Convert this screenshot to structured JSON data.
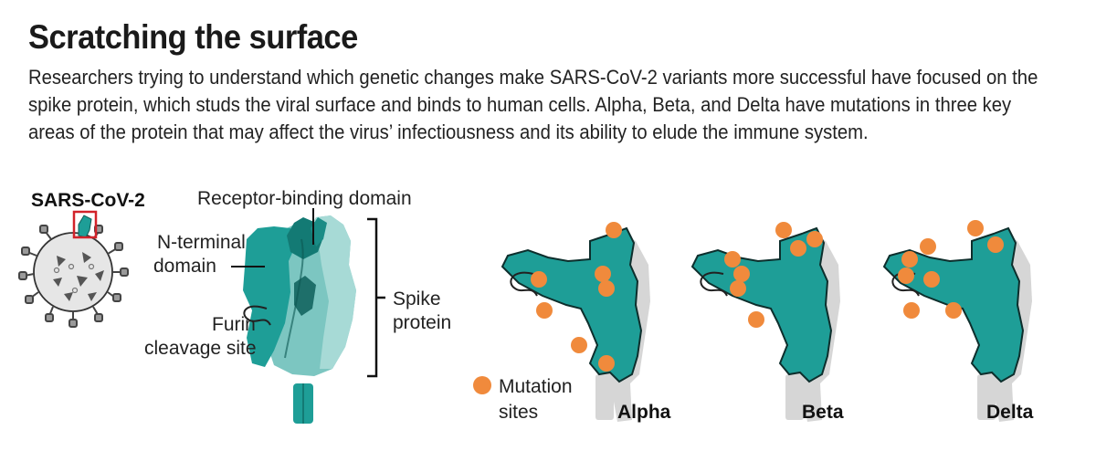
{
  "header": {
    "title": "Scratching the surface",
    "subtitle": "Researchers trying to understand which genetic changes make SARS-CoV-2 variants more successful have focused on the spike protein, which studs the viral surface and binds to human cells. Alpha, Beta, and Delta have mutations in three key areas of the protein that may affect the virus’ infectiousness and its ability to elude the immune system."
  },
  "diagram": {
    "virus_label": "SARS-CoV-2",
    "receptor_label": "Receptor-binding domain",
    "nterm_label": [
      "N-terminal",
      "domain"
    ],
    "furin_label": [
      "Furin",
      "cleavage site"
    ],
    "spike_label": [
      "Spike",
      "protein"
    ],
    "legend_label": [
      "Mutation",
      "sites"
    ],
    "variants": [
      {
        "name": "Alpha"
      },
      {
        "name": "Beta"
      },
      {
        "name": "Delta"
      }
    ]
  },
  "colors": {
    "protein": "#1e9e97",
    "protein_dark": "#137a74",
    "protein_light": "#7cc6c1",
    "mutation": "#f08a3c",
    "grey_shadow": "#d6d6d6",
    "highlight_box": "#d2232a"
  }
}
